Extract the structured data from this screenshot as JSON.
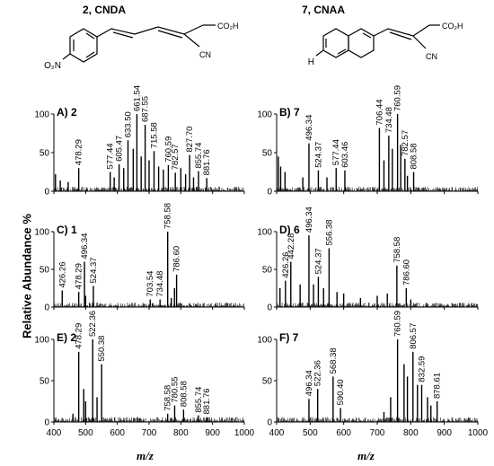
{
  "structures": {
    "left": {
      "title": "2, CNDA",
      "acid_label": "CO₂H",
      "nitrile_label": "CN",
      "substituent_label": "O₂N"
    },
    "right": {
      "title": "7, CNAA",
      "acid_label": "CO₂H",
      "nitrile_label": "CN",
      "substituent_label": "H"
    }
  },
  "y_axis_title": "Relative Abundance %",
  "x_axis_title": "m/z",
  "colors": {
    "spectrum": "#000000",
    "background": "#ffffff"
  },
  "chart_data": [
    {
      "type": "bar",
      "panel": "A) 2",
      "xlim": [
        400,
        1000
      ],
      "ylim": [
        0,
        100
      ],
      "x_ticks": [
        400,
        500,
        600,
        700,
        800,
        900,
        1000
      ],
      "y_ticks": [
        0,
        50,
        100
      ],
      "x_tick_labels_shown": false,
      "peaks": [
        {
          "mz": 478.29,
          "ab": 30,
          "label": "478.29"
        },
        {
          "mz": 577.44,
          "ab": 25,
          "label": "577.44"
        },
        {
          "mz": 605.47,
          "ab": 35,
          "label": "605.47"
        },
        {
          "mz": 633.5,
          "ab": 66,
          "label": "633.50"
        },
        {
          "mz": 661.54,
          "ab": 100,
          "label": "661.54"
        },
        {
          "mz": 687.55,
          "ab": 86,
          "label": "687.55"
        },
        {
          "mz": 715.58,
          "ab": 52,
          "label": "715.58"
        },
        {
          "mz": 760.59,
          "ab": 34,
          "label": "760.59"
        },
        {
          "mz": 782.57,
          "ab": 24,
          "label": "782.57"
        },
        {
          "mz": 827.7,
          "ab": 47,
          "label": "827.70"
        },
        {
          "mz": 855.74,
          "ab": 26,
          "label": "855.74"
        },
        {
          "mz": 881.76,
          "ab": 17,
          "label": "881.76"
        },
        {
          "mz": 650,
          "ab": 55
        },
        {
          "mz": 675,
          "ab": 45
        },
        {
          "mz": 700,
          "ab": 40
        },
        {
          "mz": 730,
          "ab": 32
        },
        {
          "mz": 745,
          "ab": 28
        },
        {
          "mz": 800,
          "ab": 30
        },
        {
          "mz": 815,
          "ab": 22
        },
        {
          "mz": 620,
          "ab": 30
        },
        {
          "mz": 590,
          "ab": 18
        },
        {
          "mz": 840,
          "ab": 18
        },
        {
          "mz": 405,
          "ab": 22
        },
        {
          "mz": 420,
          "ab": 14
        },
        {
          "mz": 445,
          "ab": 12
        }
      ]
    },
    {
      "type": "bar",
      "panel": "B) 7",
      "xlim": [
        400,
        1000
      ],
      "ylim": [
        0,
        100
      ],
      "x_ticks": [
        400,
        500,
        600,
        700,
        800,
        900,
        1000
      ],
      "y_ticks": [
        0,
        50,
        100
      ],
      "x_tick_labels_shown": false,
      "peaks": [
        {
          "mz": 496.34,
          "ab": 62,
          "label": "496.34"
        },
        {
          "mz": 524.37,
          "ab": 27,
          "label": "524.37"
        },
        {
          "mz": 577.44,
          "ab": 30,
          "label": "577.44"
        },
        {
          "mz": 603.46,
          "ab": 27,
          "label": "603.46"
        },
        {
          "mz": 706.44,
          "ab": 82,
          "label": "706.44"
        },
        {
          "mz": 734.48,
          "ab": 72,
          "label": "734.48"
        },
        {
          "mz": 760.59,
          "ab": 100,
          "label": "760.59"
        },
        {
          "mz": 782.57,
          "ab": 42,
          "label": "782.57"
        },
        {
          "mz": 808.58,
          "ab": 25,
          "label": "808.58"
        },
        {
          "mz": 405,
          "ab": 45
        },
        {
          "mz": 412,
          "ab": 32
        },
        {
          "mz": 425,
          "ab": 25
        },
        {
          "mz": 478,
          "ab": 18
        },
        {
          "mz": 550,
          "ab": 18
        },
        {
          "mz": 720,
          "ab": 40
        },
        {
          "mz": 745,
          "ab": 55
        },
        {
          "mz": 770,
          "ab": 60
        },
        {
          "mz": 790,
          "ab": 20
        }
      ]
    },
    {
      "type": "bar",
      "panel": "C) 1",
      "xlim": [
        400,
        1000
      ],
      "ylim": [
        0,
        100
      ],
      "x_ticks": [
        400,
        500,
        600,
        700,
        800,
        900,
        1000
      ],
      "y_ticks": [
        0,
        50,
        100
      ],
      "x_tick_labels_shown": false,
      "peaks": [
        {
          "mz": 426.26,
          "ab": 22,
          "label": "426.26"
        },
        {
          "mz": 478.29,
          "ab": 20,
          "label": "478.29"
        },
        {
          "mz": 496.34,
          "ab": 60,
          "label": "496.34"
        },
        {
          "mz": 524.37,
          "ab": 28,
          "label": "524.37"
        },
        {
          "mz": 703.54,
          "ab": 10,
          "label": "703.54"
        },
        {
          "mz": 734.48,
          "ab": 10,
          "label": "734.48"
        },
        {
          "mz": 758.58,
          "ab": 100,
          "label": "758.58"
        },
        {
          "mz": 786.6,
          "ab": 43,
          "label": "786.60"
        },
        {
          "mz": 500,
          "ab": 15
        },
        {
          "mz": 780,
          "ab": 25
        },
        {
          "mz": 770,
          "ab": 12
        }
      ]
    },
    {
      "type": "bar",
      "panel": "D) 6",
      "xlim": [
        400,
        1000
      ],
      "ylim": [
        0,
        100
      ],
      "x_ticks": [
        400,
        500,
        600,
        700,
        800,
        900,
        1000
      ],
      "y_ticks": [
        0,
        50,
        100
      ],
      "x_tick_labels_shown": false,
      "peaks": [
        {
          "mz": 426.26,
          "ab": 35,
          "label": "426.26"
        },
        {
          "mz": 442.28,
          "ab": 60,
          "label": "442.28"
        },
        {
          "mz": 496.34,
          "ab": 95,
          "label": "496.34"
        },
        {
          "mz": 524.37,
          "ab": 40,
          "label": "524.37"
        },
        {
          "mz": 556.38,
          "ab": 78,
          "label": "556.38"
        },
        {
          "mz": 758.58,
          "ab": 55,
          "label": "758.58"
        },
        {
          "mz": 786.6,
          "ab": 25,
          "label": "786.60"
        },
        {
          "mz": 410,
          "ab": 25
        },
        {
          "mz": 470,
          "ab": 30
        },
        {
          "mz": 510,
          "ab": 30
        },
        {
          "mz": 540,
          "ab": 25
        },
        {
          "mz": 580,
          "ab": 20
        },
        {
          "mz": 600,
          "ab": 18
        },
        {
          "mz": 650,
          "ab": 12
        },
        {
          "mz": 700,
          "ab": 15
        },
        {
          "mz": 730,
          "ab": 18
        },
        {
          "mz": 800,
          "ab": 10
        }
      ]
    },
    {
      "type": "bar",
      "panel": "E) 2",
      "xlim": [
        400,
        1000
      ],
      "ylim": [
        0,
        100
      ],
      "x_ticks": [
        400,
        500,
        600,
        700,
        800,
        900,
        1000
      ],
      "y_ticks": [
        0,
        50,
        100
      ],
      "x_tick_labels_shown": true,
      "peaks": [
        {
          "mz": 478.29,
          "ab": 85,
          "label": "478.29"
        },
        {
          "mz": 522.36,
          "ab": 100,
          "label": "522.36"
        },
        {
          "mz": 550.38,
          "ab": 70,
          "label": "550.38"
        },
        {
          "mz": 758.58,
          "ab": 10,
          "label": "758.58"
        },
        {
          "mz": 780.55,
          "ab": 20,
          "label": "780.55"
        },
        {
          "mz": 808.58,
          "ab": 15,
          "label": "808.58"
        },
        {
          "mz": 855.74,
          "ab": 8,
          "label": "855.74"
        },
        {
          "mz": 881.76,
          "ab": 6,
          "label": "881.76"
        },
        {
          "mz": 500,
          "ab": 25
        },
        {
          "mz": 494,
          "ab": 40
        },
        {
          "mz": 536,
          "ab": 30
        },
        {
          "mz": 460,
          "ab": 10
        }
      ]
    },
    {
      "type": "bar",
      "panel": "F) 7",
      "xlim": [
        400,
        1000
      ],
      "ylim": [
        0,
        100
      ],
      "x_ticks": [
        400,
        500,
        600,
        700,
        800,
        900,
        1000
      ],
      "y_ticks": [
        0,
        50,
        100
      ],
      "x_tick_labels_shown": true,
      "peaks": [
        {
          "mz": 496.34,
          "ab": 28,
          "label": "496.34"
        },
        {
          "mz": 522.36,
          "ab": 40,
          "label": "522.36"
        },
        {
          "mz": 568.38,
          "ab": 55,
          "label": "568.38"
        },
        {
          "mz": 590.4,
          "ab": 17,
          "label": "590.40"
        },
        {
          "mz": 760.59,
          "ab": 100,
          "label": "760.59"
        },
        {
          "mz": 806.57,
          "ab": 85,
          "label": "806.57"
        },
        {
          "mz": 832.59,
          "ab": 45,
          "label": "832.59"
        },
        {
          "mz": 878.61,
          "ab": 25,
          "label": "878.61"
        },
        {
          "mz": 780,
          "ab": 70
        },
        {
          "mz": 790,
          "ab": 55
        },
        {
          "mz": 820,
          "ab": 45
        },
        {
          "mz": 850,
          "ab": 30
        },
        {
          "mz": 740,
          "ab": 30
        },
        {
          "mz": 720,
          "ab": 12
        },
        {
          "mz": 860,
          "ab": 20
        }
      ]
    }
  ]
}
